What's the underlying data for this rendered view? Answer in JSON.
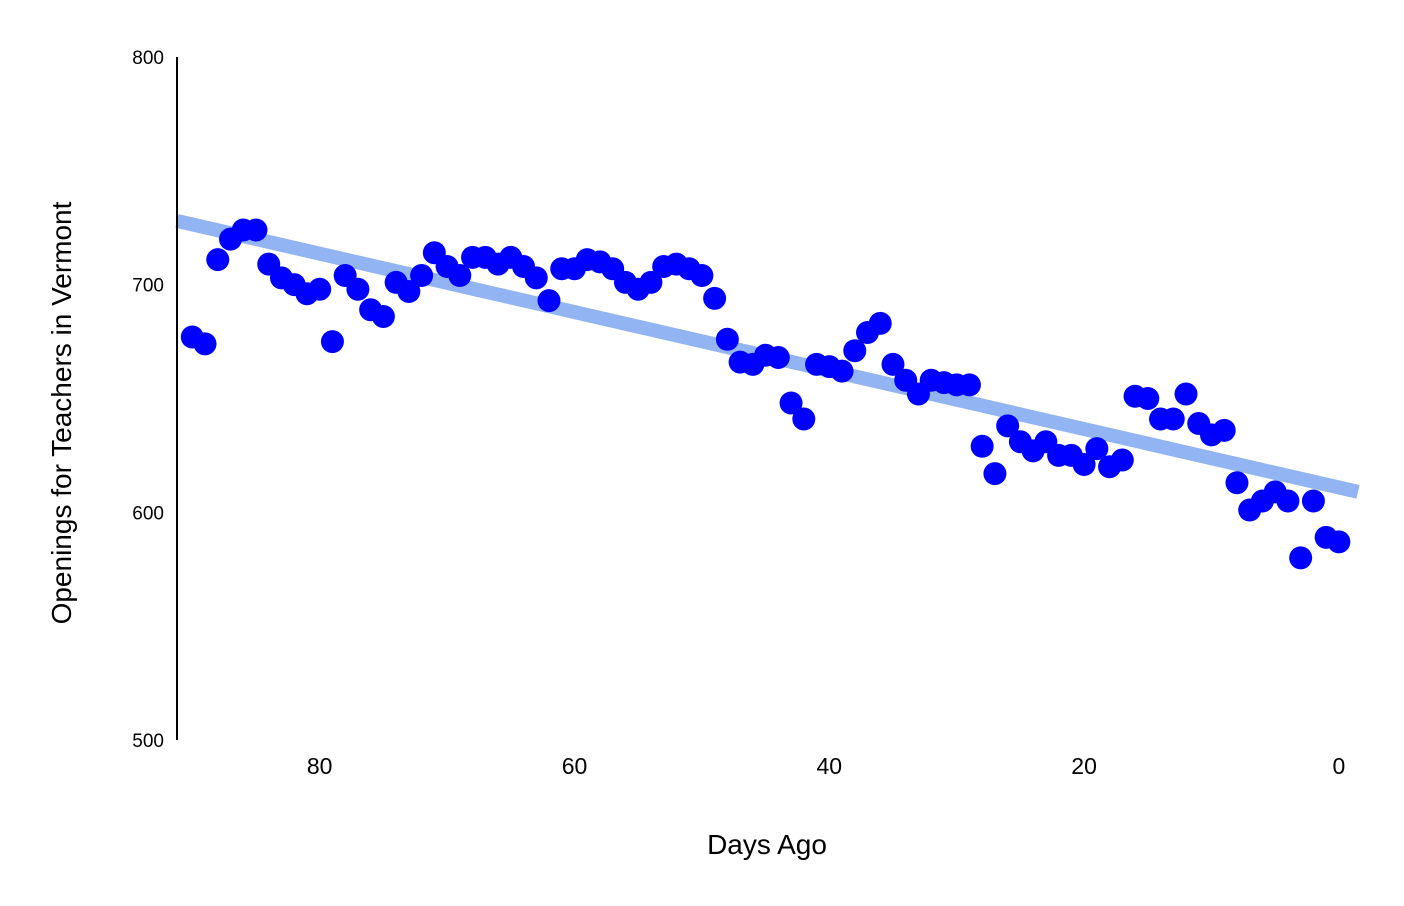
{
  "chart_data": {
    "type": "scatter",
    "xlabel": "Days Ago",
    "ylabel": "Openings for Teachers in Vermont",
    "xlim": [
      91.2,
      -1.5
    ],
    "ylim": [
      500,
      800
    ],
    "x_reversed": true,
    "xticks": [
      80,
      60,
      40,
      20,
      0
    ],
    "yticks": [
      800,
      700,
      600,
      500
    ],
    "grid": false,
    "legend": "none",
    "point_color": "#0000ff",
    "trend_color": "#92b4f2",
    "trend": {
      "x": [
        91.2,
        -1.5
      ],
      "y": [
        728,
        609
      ]
    },
    "series": [
      {
        "x": [
          90,
          89,
          88,
          87,
          86,
          85,
          84,
          83,
          82,
          81,
          80,
          79,
          78,
          77,
          76,
          75,
          74,
          73,
          72,
          71,
          70,
          69,
          68,
          67,
          66,
          65,
          64,
          63,
          62,
          61,
          60,
          59,
          58,
          57,
          56,
          55,
          54,
          53,
          52,
          51,
          50,
          49,
          48,
          47,
          46,
          45,
          44,
          43,
          42,
          41,
          40,
          39,
          38,
          37,
          36,
          35,
          34,
          33,
          32,
          31,
          30,
          29,
          28,
          27,
          26,
          25,
          24,
          23,
          22,
          21,
          20,
          19,
          18,
          17,
          16,
          15,
          14,
          13,
          12,
          11,
          10,
          9,
          8,
          7,
          6,
          5,
          4,
          3,
          2,
          1,
          0
        ],
        "y": [
          677,
          674,
          711,
          720,
          724,
          724,
          709,
          703,
          700,
          696,
          698,
          675,
          704,
          698,
          689,
          686,
          701,
          697,
          704,
          714,
          708,
          704,
          712,
          712,
          709,
          712,
          708,
          703,
          693,
          707,
          707,
          711,
          710,
          707,
          701,
          698,
          701,
          708,
          709,
          707,
          704,
          694,
          676,
          666,
          665,
          669,
          668,
          648,
          641,
          665,
          664,
          662,
          671,
          679,
          683,
          665,
          658,
          652,
          658,
          657,
          656,
          656,
          629,
          617,
          638,
          631,
          627,
          631,
          625,
          625,
          621,
          628,
          620,
          623,
          651,
          650,
          641,
          641,
          652,
          639,
          634,
          636,
          613,
          601,
          605,
          609,
          605,
          580,
          605,
          589,
          587
        ]
      }
    ]
  }
}
